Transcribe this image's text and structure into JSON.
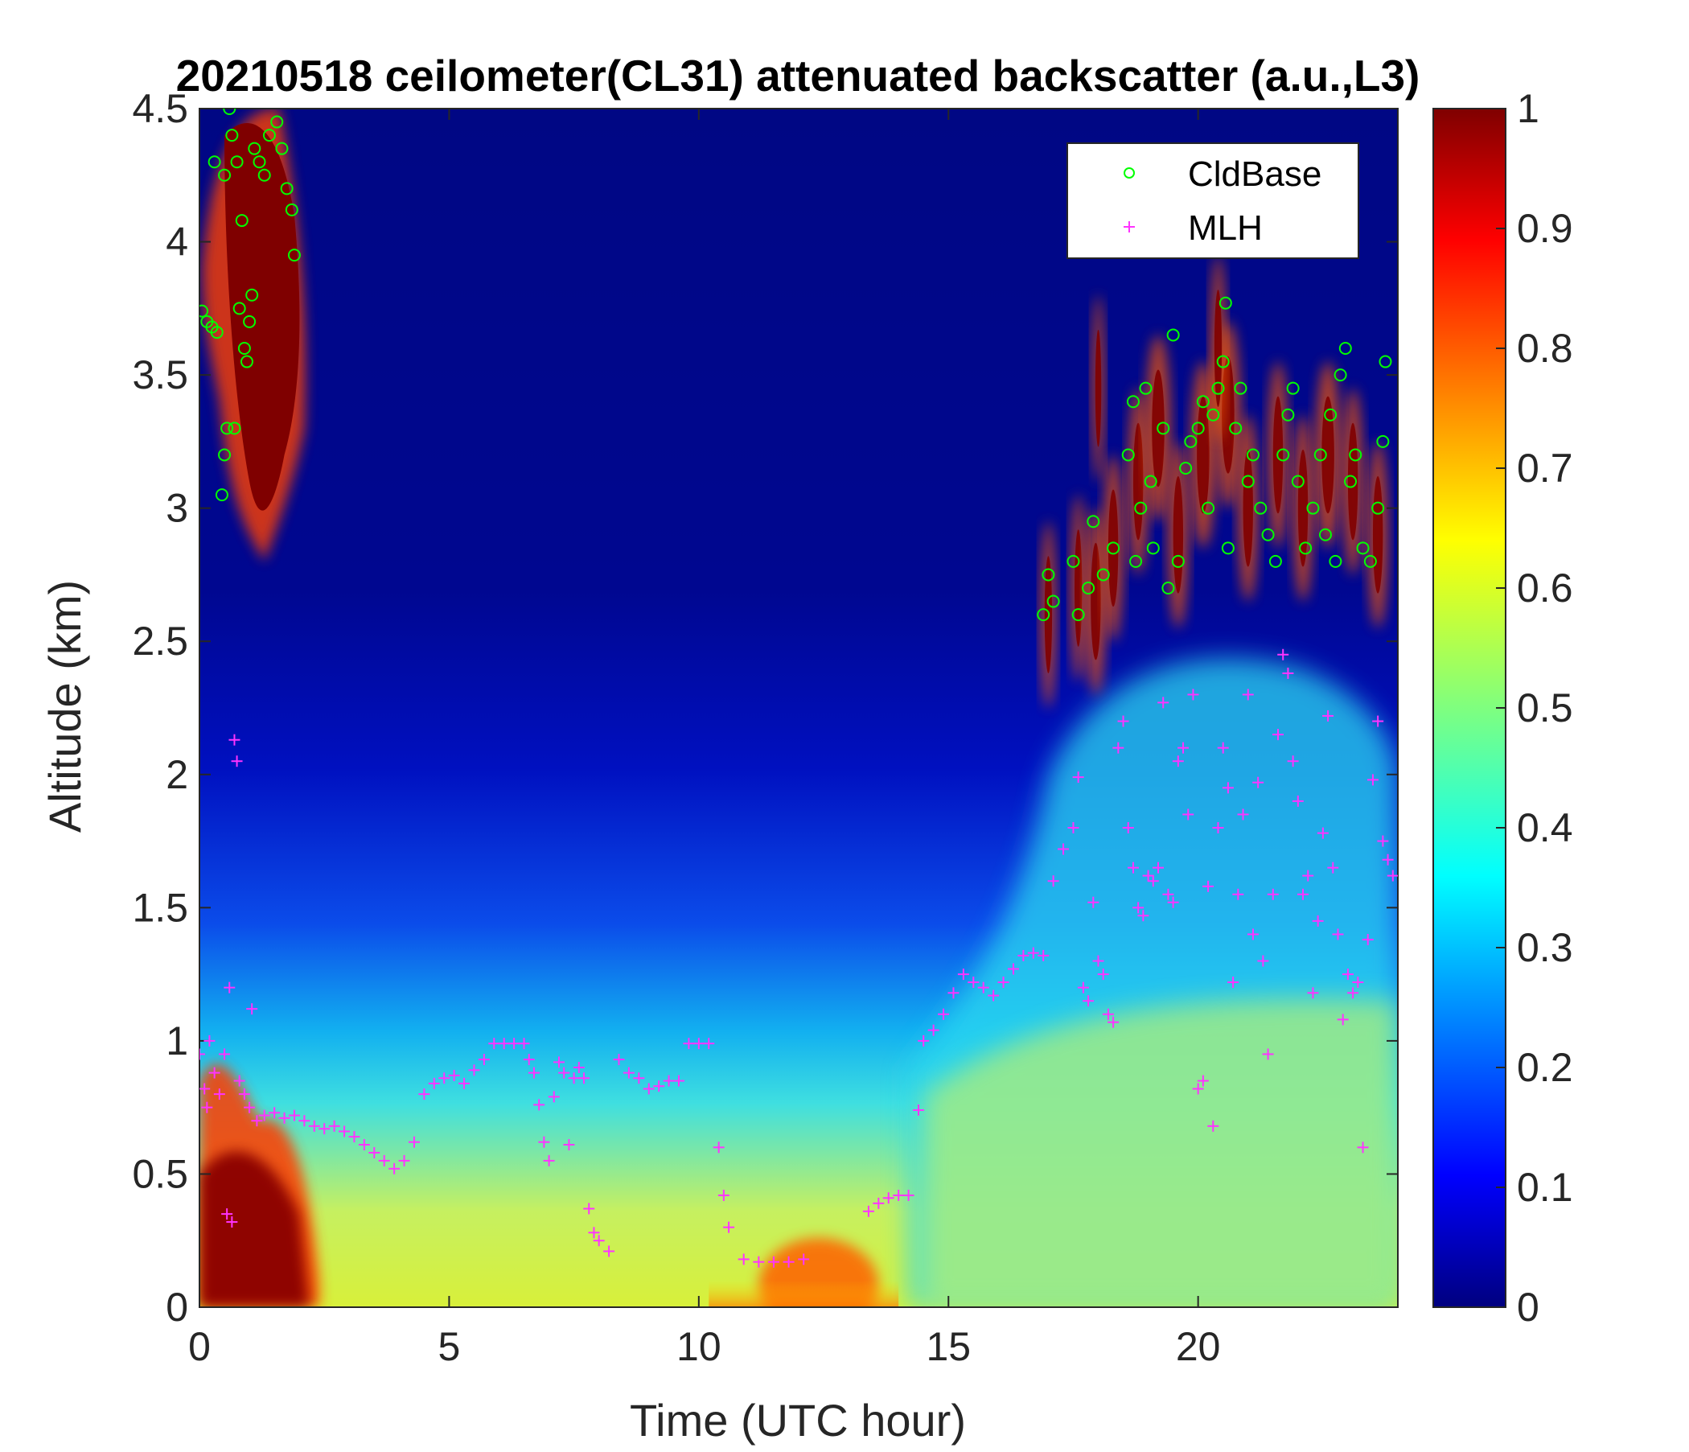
{
  "chart_data": {
    "type": "heatmap",
    "title": "20210518 ceilometer(CL31) attenuated backscatter (a.u.,L3)",
    "xlabel": "Time (UTC hour)",
    "ylabel": "Altitude (km)",
    "xlim": [
      0,
      24
    ],
    "ylim": [
      0,
      4.5
    ],
    "xticks": [
      0,
      5,
      10,
      15,
      20
    ],
    "yticks": [
      0,
      0.5,
      1,
      1.5,
      2,
      2.5,
      3,
      3.5,
      4,
      4.5
    ],
    "colorbar": {
      "colormap": "jet",
      "lim": [
        0,
        1
      ],
      "ticks": [
        0,
        0.1,
        0.2,
        0.3,
        0.4,
        0.5,
        0.6,
        0.7,
        0.8,
        0.9,
        1
      ]
    },
    "grid": false,
    "legend_position": "top-right",
    "series": [
      {
        "name": "CldBase",
        "marker": "circle",
        "color": "#00ff00",
        "points": [
          [
            0.05,
            3.74
          ],
          [
            0.15,
            3.7
          ],
          [
            0.25,
            3.68
          ],
          [
            0.35,
            3.66
          ],
          [
            0.45,
            3.05
          ],
          [
            0.5,
            3.2
          ],
          [
            0.55,
            3.3
          ],
          [
            0.6,
            4.5
          ],
          [
            0.65,
            4.4
          ],
          [
            0.75,
            4.3
          ],
          [
            0.8,
            3.75
          ],
          [
            0.85,
            4.08
          ],
          [
            0.9,
            3.6
          ],
          [
            0.95,
            3.55
          ],
          [
            1.05,
            3.8
          ],
          [
            1.1,
            4.35
          ],
          [
            1.2,
            4.3
          ],
          [
            1.3,
            4.25
          ],
          [
            1.4,
            4.4
          ],
          [
            1.55,
            4.45
          ],
          [
            1.65,
            4.35
          ],
          [
            1.75,
            4.2
          ],
          [
            1.85,
            4.12
          ],
          [
            1.9,
            3.95
          ],
          [
            0.3,
            4.3
          ],
          [
            0.5,
            4.25
          ],
          [
            1.0,
            3.7
          ],
          [
            0.7,
            3.3
          ],
          [
            16.9,
            2.6
          ],
          [
            17.0,
            2.75
          ],
          [
            17.1,
            2.65
          ],
          [
            17.5,
            2.8
          ],
          [
            17.6,
            2.6
          ],
          [
            17.8,
            2.7
          ],
          [
            17.9,
            2.95
          ],
          [
            18.1,
            2.75
          ],
          [
            18.3,
            2.85
          ],
          [
            18.6,
            3.2
          ],
          [
            18.7,
            3.4
          ],
          [
            18.75,
            2.8
          ],
          [
            18.85,
            3.0
          ],
          [
            18.95,
            3.45
          ],
          [
            19.05,
            3.1
          ],
          [
            19.1,
            2.85
          ],
          [
            19.3,
            3.3
          ],
          [
            19.4,
            2.7
          ],
          [
            19.5,
            3.65
          ],
          [
            19.6,
            2.8
          ],
          [
            19.75,
            3.15
          ],
          [
            19.85,
            3.25
          ],
          [
            20.0,
            3.3
          ],
          [
            20.1,
            3.4
          ],
          [
            20.2,
            3.0
          ],
          [
            20.3,
            3.35
          ],
          [
            20.4,
            3.45
          ],
          [
            20.5,
            3.55
          ],
          [
            20.55,
            3.77
          ],
          [
            20.6,
            2.85
          ],
          [
            20.75,
            3.3
          ],
          [
            20.85,
            3.45
          ],
          [
            21.0,
            3.1
          ],
          [
            21.1,
            3.2
          ],
          [
            21.25,
            3.0
          ],
          [
            21.4,
            2.9
          ],
          [
            21.55,
            2.8
          ],
          [
            21.7,
            3.2
          ],
          [
            21.8,
            3.35
          ],
          [
            21.9,
            3.45
          ],
          [
            22.0,
            3.1
          ],
          [
            22.15,
            2.85
          ],
          [
            22.3,
            3.0
          ],
          [
            22.45,
            3.2
          ],
          [
            22.55,
            2.9
          ],
          [
            22.65,
            3.35
          ],
          [
            22.75,
            2.8
          ],
          [
            22.85,
            3.5
          ],
          [
            22.95,
            3.6
          ],
          [
            23.05,
            3.1
          ],
          [
            23.15,
            3.2
          ],
          [
            23.3,
            2.85
          ],
          [
            23.45,
            2.8
          ],
          [
            23.6,
            3.0
          ],
          [
            23.7,
            3.25
          ],
          [
            23.75,
            3.55
          ]
        ]
      },
      {
        "name": "MLH",
        "marker": "plus",
        "color": "#ff33ff",
        "points": [
          [
            0.0,
            0.95
          ],
          [
            0.1,
            0.82
          ],
          [
            0.15,
            0.75
          ],
          [
            0.2,
            1.0
          ],
          [
            0.3,
            0.88
          ],
          [
            0.4,
            0.8
          ],
          [
            0.5,
            0.95
          ],
          [
            0.55,
            0.35
          ],
          [
            0.6,
            1.2
          ],
          [
            0.65,
            0.32
          ],
          [
            0.7,
            2.13
          ],
          [
            0.75,
            2.05
          ],
          [
            0.8,
            0.85
          ],
          [
            0.9,
            0.8
          ],
          [
            1.0,
            0.75
          ],
          [
            1.05,
            1.12
          ],
          [
            1.15,
            0.7
          ],
          [
            1.3,
            0.72
          ],
          [
            1.5,
            0.73
          ],
          [
            1.7,
            0.71
          ],
          [
            1.9,
            0.72
          ],
          [
            2.1,
            0.7
          ],
          [
            2.3,
            0.68
          ],
          [
            2.5,
            0.67
          ],
          [
            2.7,
            0.68
          ],
          [
            2.9,
            0.66
          ],
          [
            3.1,
            0.64
          ],
          [
            3.3,
            0.61
          ],
          [
            3.5,
            0.58
          ],
          [
            3.7,
            0.55
          ],
          [
            3.9,
            0.52
          ],
          [
            4.1,
            0.55
          ],
          [
            4.3,
            0.62
          ],
          [
            4.5,
            0.8
          ],
          [
            4.7,
            0.84
          ],
          [
            4.9,
            0.86
          ],
          [
            5.1,
            0.87
          ],
          [
            5.3,
            0.84
          ],
          [
            5.5,
            0.89
          ],
          [
            5.7,
            0.93
          ],
          [
            5.9,
            0.99
          ],
          [
            6.1,
            0.99
          ],
          [
            6.3,
            0.99
          ],
          [
            6.5,
            0.99
          ],
          [
            6.6,
            0.93
          ],
          [
            6.7,
            0.88
          ],
          [
            6.8,
            0.76
          ],
          [
            6.9,
            0.62
          ],
          [
            7.0,
            0.55
          ],
          [
            7.1,
            0.79
          ],
          [
            7.2,
            0.92
          ],
          [
            7.3,
            0.88
          ],
          [
            7.4,
            0.61
          ],
          [
            7.5,
            0.86
          ],
          [
            7.6,
            0.9
          ],
          [
            7.7,
            0.86
          ],
          [
            7.8,
            0.37
          ],
          [
            7.9,
            0.28
          ],
          [
            8.0,
            0.25
          ],
          [
            8.2,
            0.21
          ],
          [
            8.4,
            0.93
          ],
          [
            8.6,
            0.88
          ],
          [
            8.8,
            0.86
          ],
          [
            9.0,
            0.82
          ],
          [
            9.2,
            0.83
          ],
          [
            9.4,
            0.85
          ],
          [
            9.6,
            0.85
          ],
          [
            9.8,
            0.99
          ],
          [
            10.0,
            0.99
          ],
          [
            10.2,
            0.99
          ],
          [
            10.4,
            0.6
          ],
          [
            10.5,
            0.42
          ],
          [
            10.6,
            0.3
          ],
          [
            10.9,
            0.18
          ],
          [
            11.2,
            0.17
          ],
          [
            11.5,
            0.17
          ],
          [
            11.8,
            0.17
          ],
          [
            12.1,
            0.18
          ],
          [
            13.4,
            0.36
          ],
          [
            13.6,
            0.39
          ],
          [
            13.8,
            0.41
          ],
          [
            14.0,
            0.42
          ],
          [
            14.2,
            0.42
          ],
          [
            14.4,
            0.74
          ],
          [
            14.5,
            1.0
          ],
          [
            14.7,
            1.04
          ],
          [
            14.9,
            1.1
          ],
          [
            15.1,
            1.18
          ],
          [
            15.3,
            1.25
          ],
          [
            15.5,
            1.22
          ],
          [
            15.7,
            1.2
          ],
          [
            15.9,
            1.17
          ],
          [
            16.1,
            1.22
          ],
          [
            16.3,
            1.27
          ],
          [
            16.5,
            1.32
          ],
          [
            16.7,
            1.33
          ],
          [
            16.9,
            1.32
          ],
          [
            17.1,
            1.6
          ],
          [
            17.3,
            1.72
          ],
          [
            17.5,
            1.8
          ],
          [
            17.6,
            1.99
          ],
          [
            17.7,
            1.2
          ],
          [
            17.8,
            1.15
          ],
          [
            17.9,
            1.52
          ],
          [
            18.0,
            1.3
          ],
          [
            18.1,
            1.25
          ],
          [
            18.2,
            1.1
          ],
          [
            18.3,
            1.07
          ],
          [
            18.4,
            2.1
          ],
          [
            18.5,
            2.2
          ],
          [
            18.6,
            1.8
          ],
          [
            18.7,
            1.65
          ],
          [
            18.8,
            1.5
          ],
          [
            18.9,
            1.47
          ],
          [
            19.0,
            1.62
          ],
          [
            19.1,
            1.6
          ],
          [
            19.2,
            1.65
          ],
          [
            19.3,
            2.27
          ],
          [
            19.4,
            1.55
          ],
          [
            19.5,
            1.52
          ],
          [
            19.6,
            2.05
          ],
          [
            19.7,
            2.1
          ],
          [
            19.8,
            1.85
          ],
          [
            19.9,
            2.3
          ],
          [
            20.0,
            0.82
          ],
          [
            20.1,
            0.85
          ],
          [
            20.2,
            1.58
          ],
          [
            20.3,
            0.68
          ],
          [
            20.4,
            1.8
          ],
          [
            20.5,
            2.1
          ],
          [
            20.6,
            1.95
          ],
          [
            20.7,
            1.22
          ],
          [
            20.8,
            1.55
          ],
          [
            20.9,
            1.85
          ],
          [
            21.0,
            2.3
          ],
          [
            21.1,
            1.4
          ],
          [
            21.2,
            1.97
          ],
          [
            21.3,
            1.3
          ],
          [
            21.4,
            0.95
          ],
          [
            21.5,
            1.55
          ],
          [
            21.6,
            2.15
          ],
          [
            21.7,
            2.45
          ],
          [
            21.8,
            2.38
          ],
          [
            21.9,
            2.05
          ],
          [
            22.0,
            1.9
          ],
          [
            22.1,
            1.55
          ],
          [
            22.2,
            1.62
          ],
          [
            22.3,
            1.18
          ],
          [
            22.4,
            1.45
          ],
          [
            22.5,
            1.78
          ],
          [
            22.6,
            2.22
          ],
          [
            22.7,
            1.65
          ],
          [
            22.8,
            1.4
          ],
          [
            22.9,
            1.08
          ],
          [
            23.0,
            1.25
          ],
          [
            23.1,
            1.18
          ],
          [
            23.2,
            1.22
          ],
          [
            23.3,
            0.6
          ],
          [
            23.4,
            1.38
          ],
          [
            23.5,
            1.98
          ],
          [
            23.6,
            2.2
          ],
          [
            23.7,
            1.75
          ],
          [
            23.8,
            1.68
          ],
          [
            23.9,
            1.62
          ]
        ]
      }
    ]
  }
}
